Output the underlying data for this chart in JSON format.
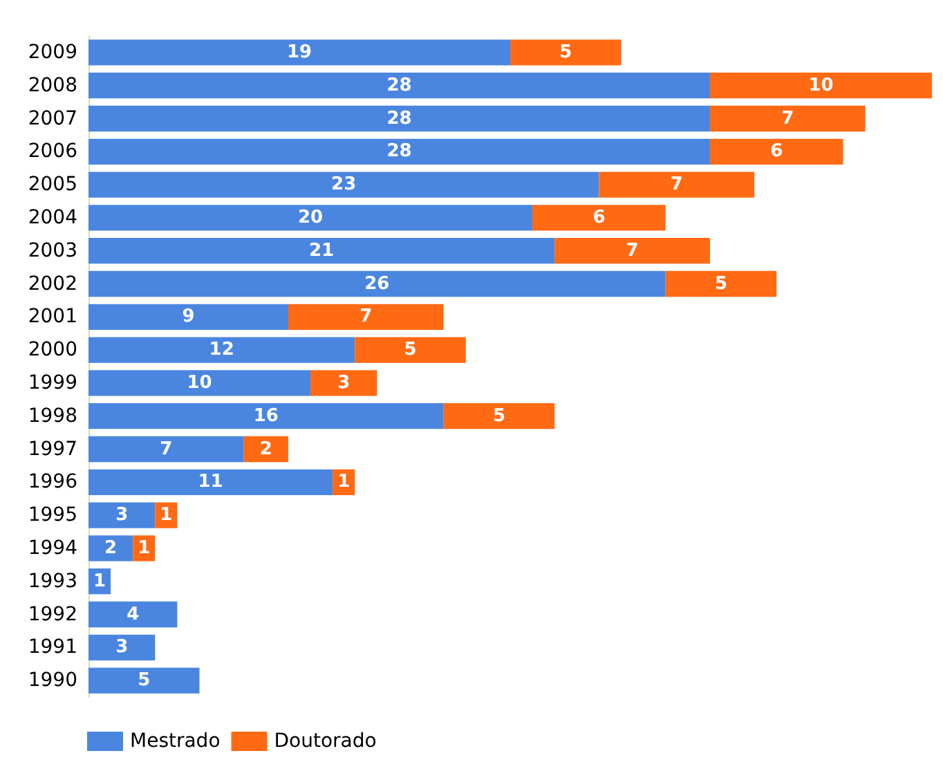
{
  "chart_data": {
    "type": "bar",
    "orientation": "horizontal",
    "stacked": true,
    "legend": "bottom left",
    "categories": [
      "2009",
      "2008",
      "2007",
      "2006",
      "2005",
      "2004",
      "2003",
      "2002",
      "2001",
      "2000",
      "1999",
      "1998",
      "1997",
      "1996",
      "1995",
      "1994",
      "1993",
      "1992",
      "1991",
      "1990"
    ],
    "series": [
      {
        "name": "Mestrado",
        "color": "#4a86e0",
        "values": [
          19,
          28,
          28,
          28,
          23,
          20,
          21,
          26,
          9,
          12,
          10,
          16,
          7,
          11,
          3,
          2,
          1,
          4,
          3,
          5
        ],
        "value_labels": [
          "19",
          "28",
          "28",
          "28",
          "23",
          "20",
          "21",
          "26",
          "9",
          "12",
          "10",
          "16",
          "7",
          "11",
          "3",
          "2",
          "1",
          "4",
          "3",
          "5"
        ]
      },
      {
        "name": "Doutorado",
        "color": "#ff6a13",
        "values": [
          5,
          10,
          7,
          6,
          7,
          6,
          7,
          5,
          7,
          5,
          3,
          5,
          2,
          1,
          1,
          1,
          0,
          0,
          0,
          0
        ],
        "value_labels": [
          "5",
          "10",
          "7",
          "6",
          "7",
          "6",
          "7",
          "5",
          "7",
          "5",
          "3",
          "5",
          "2",
          "1",
          "1",
          "1",
          null,
          null,
          null,
          null
        ]
      }
    ]
  }
}
